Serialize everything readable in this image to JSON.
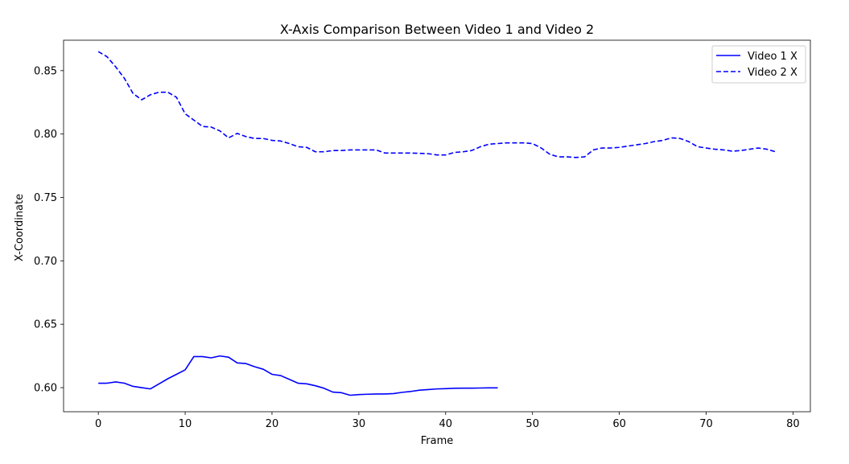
{
  "chart_data": {
    "type": "line",
    "title": "X-Axis Comparison Between Video 1 and Video 2",
    "xlabel": "Frame",
    "ylabel": "X-Coordinate",
    "xlim": [
      -4,
      82
    ],
    "ylim": [
      0.581,
      0.874
    ],
    "xticks": [
      0,
      10,
      20,
      30,
      40,
      50,
      60,
      70,
      80
    ],
    "yticks": [
      0.6,
      0.65,
      0.7,
      0.75,
      0.8,
      0.85
    ],
    "grid": false,
    "legend_position": "top-right",
    "series": [
      {
        "name": "Video 1 X",
        "color": "#0000ff",
        "style": "solid",
        "x": [
          0,
          1,
          2,
          3,
          4,
          5,
          6,
          7,
          8,
          9,
          10,
          11,
          12,
          13,
          14,
          15,
          16,
          17,
          18,
          19,
          20,
          21,
          22,
          23,
          24,
          25,
          26,
          27,
          28,
          29,
          30,
          31,
          32,
          33,
          34,
          35,
          36,
          37,
          38,
          39,
          40,
          41,
          42,
          43,
          44,
          45,
          46
        ],
        "values": [
          0.6035,
          0.6035,
          0.6045,
          0.6035,
          0.601,
          0.6,
          0.599,
          0.603,
          0.607,
          0.6105,
          0.614,
          0.6245,
          0.6245,
          0.6235,
          0.625,
          0.624,
          0.6195,
          0.619,
          0.6165,
          0.6145,
          0.6105,
          0.6095,
          0.6065,
          0.6035,
          0.603,
          0.6015,
          0.5995,
          0.5965,
          0.596,
          0.594,
          0.5945,
          0.5948,
          0.595,
          0.595,
          0.5953,
          0.5963,
          0.597,
          0.598,
          0.5985,
          0.599,
          0.5992,
          0.5995,
          0.5996,
          0.5996,
          0.5997,
          0.5998,
          0.5998
        ]
      },
      {
        "name": "Video 2 X",
        "color": "#0000ff",
        "style": "dashed",
        "x": [
          0,
          1,
          2,
          3,
          4,
          5,
          6,
          7,
          8,
          9,
          10,
          11,
          12,
          13,
          14,
          15,
          16,
          17,
          18,
          19,
          20,
          21,
          22,
          23,
          24,
          25,
          26,
          27,
          28,
          29,
          30,
          31,
          32,
          33,
          34,
          35,
          36,
          37,
          38,
          39,
          40,
          41,
          42,
          43,
          44,
          45,
          46,
          47,
          48,
          49,
          50,
          51,
          52,
          53,
          54,
          55,
          56,
          57,
          58,
          59,
          60,
          61,
          62,
          63,
          64,
          65,
          66,
          67,
          68,
          69,
          70,
          71,
          72,
          73,
          74,
          75,
          76,
          77,
          78
        ],
        "values": [
          0.865,
          0.861,
          0.853,
          0.844,
          0.832,
          0.827,
          0.831,
          0.833,
          0.833,
          0.829,
          0.816,
          0.811,
          0.806,
          0.8055,
          0.8025,
          0.797,
          0.8005,
          0.798,
          0.7965,
          0.7965,
          0.795,
          0.7945,
          0.7925,
          0.79,
          0.7895,
          0.786,
          0.786,
          0.787,
          0.787,
          0.7875,
          0.7875,
          0.7875,
          0.7875,
          0.785,
          0.785,
          0.785,
          0.785,
          0.7848,
          0.7845,
          0.7835,
          0.7835,
          0.7855,
          0.786,
          0.787,
          0.79,
          0.792,
          0.7925,
          0.793,
          0.793,
          0.793,
          0.7925,
          0.789,
          0.784,
          0.782,
          0.782,
          0.7815,
          0.782,
          0.7875,
          0.789,
          0.789,
          0.7895,
          0.7905,
          0.7915,
          0.7925,
          0.794,
          0.795,
          0.797,
          0.7965,
          0.794,
          0.79,
          0.789,
          0.788,
          0.7875,
          0.7865,
          0.787,
          0.788,
          0.789,
          0.788,
          0.786
        ]
      }
    ]
  }
}
